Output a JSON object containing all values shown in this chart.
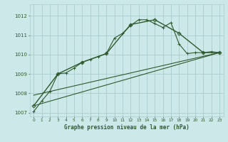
{
  "background_color": "#cce8e8",
  "grid_color": "#aacccc",
  "line_color": "#2d5a2d",
  "xlabel": "Graphe pression niveau de la mer (hPa)",
  "xlim": [
    -0.5,
    23.5
  ],
  "ylim": [
    1006.8,
    1012.6
  ],
  "yticks": [
    1007,
    1008,
    1009,
    1010,
    1011,
    1012
  ],
  "xticks": [
    0,
    1,
    2,
    3,
    4,
    5,
    6,
    7,
    8,
    9,
    10,
    11,
    12,
    13,
    14,
    15,
    16,
    17,
    18,
    19,
    20,
    21,
    22,
    23
  ],
  "series": [
    {
      "x": [
        0,
        1,
        2,
        3,
        4,
        5,
        6,
        7,
        8,
        9,
        10,
        11,
        12,
        13,
        14,
        15,
        16,
        17,
        18,
        19,
        20,
        21,
        22,
        23
      ],
      "y": [
        1007.05,
        1007.6,
        1008.1,
        1009.0,
        1009.05,
        1009.3,
        1009.6,
        1009.75,
        1009.9,
        1010.05,
        1010.85,
        1011.1,
        1011.5,
        1011.8,
        1011.8,
        1011.6,
        1011.4,
        1011.65,
        1010.55,
        1010.05,
        1010.1,
        1010.1,
        1010.15,
        1010.1
      ],
      "marker": "+",
      "markersize": 3,
      "linewidth": 0.8,
      "linestyle": "-"
    },
    {
      "x": [
        0,
        3,
        6,
        9,
        12,
        15,
        18,
        21,
        23
      ],
      "y": [
        1007.35,
        1009.0,
        1009.6,
        1010.05,
        1011.55,
        1011.8,
        1011.1,
        1010.1,
        1010.1
      ],
      "marker": "D",
      "markersize": 2.5,
      "linewidth": 1.0,
      "linestyle": "-"
    },
    {
      "x": [
        0,
        23
      ],
      "y": [
        1007.35,
        1010.1
      ],
      "marker": null,
      "markersize": 0,
      "linewidth": 0.8,
      "linestyle": "-"
    },
    {
      "x": [
        0,
        23
      ],
      "y": [
        1007.9,
        1010.1
      ],
      "marker": null,
      "markersize": 0,
      "linewidth": 0.8,
      "linestyle": "-"
    }
  ]
}
